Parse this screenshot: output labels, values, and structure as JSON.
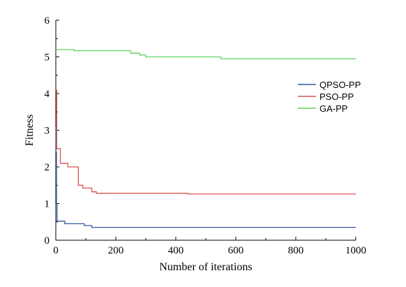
{
  "chart_data": {
    "type": "line",
    "xlabel": "Number of iterations",
    "ylabel": "Fitness",
    "xlim": [
      0,
      1000
    ],
    "ylim": [
      0,
      6
    ],
    "xticks": [
      0,
      200,
      400,
      600,
      800,
      1000
    ],
    "yticks": [
      0,
      1,
      2,
      3,
      4,
      5,
      6
    ],
    "grid": false,
    "legend_position": "right",
    "series": [
      {
        "name": "QPSO-PP",
        "color": "#2c5aa0",
        "step": true,
        "points": [
          [
            0,
            3.1
          ],
          [
            1,
            2.4
          ],
          [
            2,
            1.0
          ],
          [
            4,
            0.52
          ],
          [
            30,
            0.45
          ],
          [
            95,
            0.4
          ],
          [
            120,
            0.35
          ],
          [
            1000,
            0.35
          ]
        ]
      },
      {
        "name": "PSO-PP",
        "color": "#d9534f",
        "step": true,
        "points": [
          [
            0,
            4.1
          ],
          [
            3,
            2.5
          ],
          [
            15,
            2.1
          ],
          [
            40,
            2.0
          ],
          [
            75,
            1.5
          ],
          [
            90,
            1.42
          ],
          [
            120,
            1.32
          ],
          [
            135,
            1.28
          ],
          [
            440,
            1.26
          ],
          [
            1000,
            1.26
          ]
        ]
      },
      {
        "name": "GA-PP",
        "color": "#5bd25b",
        "step": true,
        "points": [
          [
            0,
            5.2
          ],
          [
            60,
            5.17
          ],
          [
            250,
            5.1
          ],
          [
            280,
            5.05
          ],
          [
            300,
            5.0
          ],
          [
            550,
            4.95
          ],
          [
            1000,
            4.95
          ]
        ]
      }
    ]
  }
}
